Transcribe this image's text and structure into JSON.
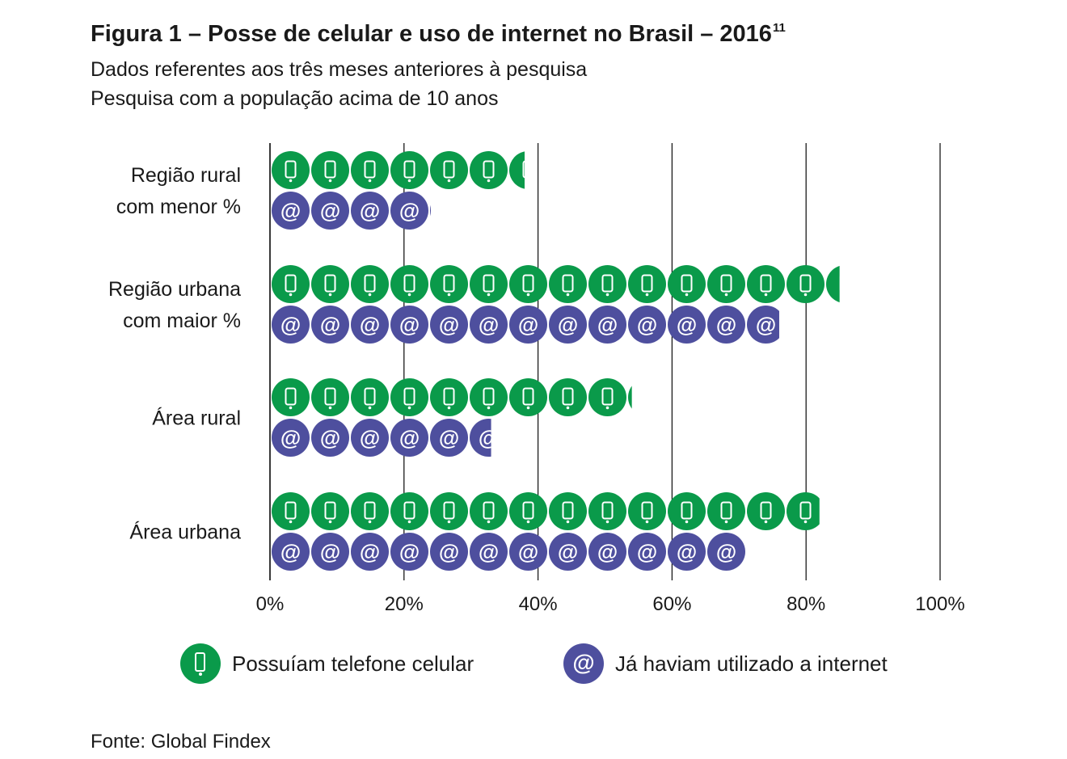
{
  "title": {
    "text": "Figura 1 – Posse de celular e uso de internet no Brasil – 2016",
    "footnote": "11"
  },
  "subtitle_1": "Dados referentes aos três meses anteriores à pesquisa",
  "subtitle_2": "Pesquisa com a população acima de 10 anos",
  "source": "Fonte: Global Findex",
  "colors": {
    "phone": "#0a9a4a",
    "internet": "#4e4f9e",
    "axis": "#1a1a1a"
  },
  "icons": {
    "phone": "mobile-phone-icon",
    "internet": "at-sign-icon"
  },
  "legend": {
    "phone_label": "Possuíam telefone celular",
    "internet_label": "Já haviam utilizado a internet"
  },
  "chart_data": {
    "type": "bar",
    "orientation": "horizontal",
    "style": "pictogram",
    "categories": [
      [
        "Região rural",
        "com menor %"
      ],
      [
        "Região urbana",
        "com maior %"
      ],
      [
        "Área rural"
      ],
      [
        "Área urbana"
      ]
    ],
    "series": [
      {
        "name": "Possuíam telefone celular",
        "values": [
          38,
          85,
          54,
          82
        ]
      },
      {
        "name": "Já haviam utilizado a internet",
        "values": [
          24,
          76,
          33,
          71
        ]
      }
    ],
    "xlim": [
      0,
      100
    ],
    "xticks": [
      0,
      20,
      40,
      60,
      80,
      100
    ],
    "xtick_labels": [
      "0%",
      "20%",
      "40%",
      "60%",
      "80%",
      "100%"
    ],
    "grid": "vertical",
    "legend_position": "bottom",
    "xlabel": "",
    "ylabel": ""
  }
}
